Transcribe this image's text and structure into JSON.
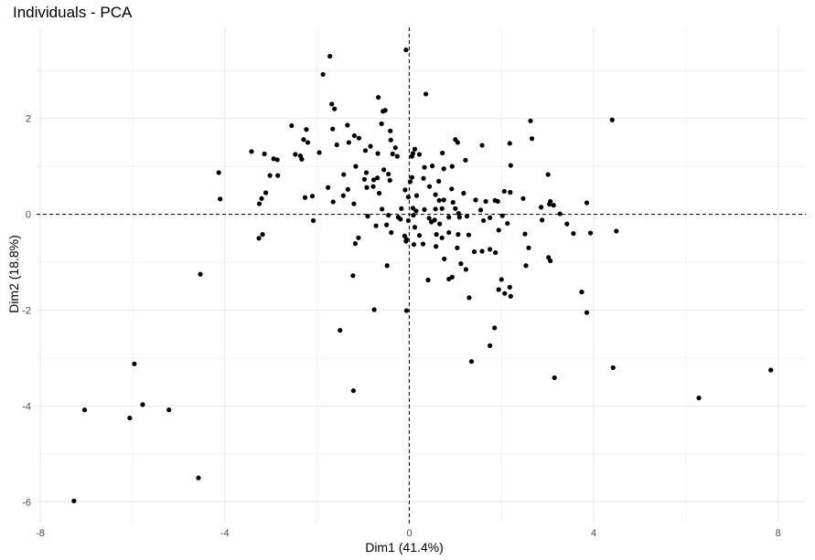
{
  "chart_data": {
    "type": "scatter",
    "title": "Individuals - PCA",
    "xlabel": "Dim1 (41.4%)",
    "ylabel": "Dim2 (18.8%)",
    "xlim": [
      -8.08,
      8.6
    ],
    "ylim": [
      -6.45,
      3.9
    ],
    "xticks": [
      -8,
      -4,
      0,
      4,
      8
    ],
    "yticks": [
      -6,
      -4,
      -2,
      0,
      2
    ],
    "xtick_labels": [
      "-8",
      "-4",
      "0",
      "4",
      "8"
    ],
    "ytick_labels": [
      "-6",
      "-4",
      "-2",
      "0",
      "2"
    ],
    "grid": true,
    "reference_lines": {
      "x": 0,
      "y": 0,
      "style": "dashed"
    },
    "point_color": "#000000",
    "points": [
      [
        -0.07,
        3.43
      ],
      [
        -1.72,
        3.3
      ],
      [
        -1.87,
        2.92
      ],
      [
        0.36,
        2.51
      ],
      [
        -0.52,
        2.17
      ],
      [
        -0.57,
        2.15
      ],
      [
        -1.68,
        2.3
      ],
      [
        -0.67,
        2.44
      ],
      [
        -1.62,
        2.2
      ],
      [
        2.63,
        1.95
      ],
      [
        4.4,
        1.97
      ],
      [
        -2.55,
        1.85
      ],
      [
        -1.34,
        1.86
      ],
      [
        -1.66,
        1.78
      ],
      [
        -0.6,
        1.89
      ],
      [
        -2.23,
        1.77
      ],
      [
        -2.29,
        1.56
      ],
      [
        -1.19,
        1.64
      ],
      [
        -1.31,
        1.5
      ],
      [
        -1.09,
        1.59
      ],
      [
        -0.41,
        1.74
      ],
      [
        2.66,
        1.58
      ],
      [
        -1.57,
        1.45
      ],
      [
        -0.4,
        1.55
      ],
      [
        -1.95,
        1.29
      ],
      [
        -2.2,
        1.5
      ],
      [
        -3.42,
        1.31
      ],
      [
        -3.14,
        1.26
      ],
      [
        2.18,
        1.48
      ],
      [
        -0.84,
        1.42
      ],
      [
        -0.95,
        1.33
      ],
      [
        -2.47,
        1.25
      ],
      [
        -2.33,
        1.15
      ],
      [
        1.0,
        1.56
      ],
      [
        1.05,
        1.5
      ],
      [
        1.58,
        1.44
      ],
      [
        -2.86,
        1.14
      ],
      [
        -2.94,
        1.16
      ],
      [
        -0.3,
        1.39
      ],
      [
        -0.36,
        1.26
      ],
      [
        -0.68,
        1.27
      ],
      [
        0.22,
        1.25
      ],
      [
        0.72,
        1.28
      ],
      [
        1.22,
        1.13
      ],
      [
        -2.36,
        1.22
      ],
      [
        -0.26,
        1.21
      ],
      [
        0.12,
        1.36
      ],
      [
        0.08,
        1.27
      ],
      [
        0.06,
        1.21
      ],
      [
        0.5,
        1.01
      ],
      [
        -1.16,
        1.0
      ],
      [
        -0.55,
        0.93
      ],
      [
        -0.93,
        0.87
      ],
      [
        -0.45,
        0.84
      ],
      [
        -0.69,
        0.76
      ],
      [
        2.2,
        1.02
      ],
      [
        0.93,
        1.0
      ],
      [
        0.33,
        0.98
      ],
      [
        0.75,
        0.95
      ],
      [
        -4.13,
        0.87
      ],
      [
        -1.42,
        0.83
      ],
      [
        -3.02,
        0.81
      ],
      [
        -2.85,
        0.81
      ],
      [
        -0.97,
        0.73
      ],
      [
        -0.77,
        0.72
      ],
      [
        -0.42,
        0.71
      ],
      [
        0.06,
        0.77
      ],
      [
        0.02,
        0.68
      ],
      [
        0.31,
        0.75
      ],
      [
        0.64,
        0.69
      ],
      [
        3.01,
        0.83
      ],
      [
        -1.76,
        0.56
      ],
      [
        -0.92,
        0.56
      ],
      [
        -0.78,
        0.58
      ],
      [
        -0.09,
        0.51
      ],
      [
        0.44,
        0.58
      ],
      [
        0.92,
        0.53
      ],
      [
        1.18,
        0.44
      ],
      [
        1.44,
        0.3
      ],
      [
        2.06,
        0.48
      ],
      [
        2.19,
        0.46
      ],
      [
        -3.11,
        0.45
      ],
      [
        -3.2,
        0.33
      ],
      [
        -2.26,
        0.35
      ],
      [
        -2.1,
        0.38
      ],
      [
        -1.33,
        0.52
      ],
      [
        -1.43,
        0.39
      ],
      [
        -0.65,
        0.44
      ],
      [
        -0.02,
        0.36
      ],
      [
        0.16,
        0.39
      ],
      [
        0.57,
        0.41
      ],
      [
        0.65,
        0.29
      ],
      [
        0.75,
        0.3
      ],
      [
        0.95,
        0.25
      ],
      [
        1.66,
        0.27
      ],
      [
        1.86,
        0.29
      ],
      [
        2.47,
        0.33
      ],
      [
        3.06,
        0.27
      ],
      [
        3.04,
        0.21
      ],
      [
        3.13,
        0.19
      ],
      [
        -4.1,
        0.32
      ],
      [
        -3.25,
        0.22
      ],
      [
        -1.65,
        0.26
      ],
      [
        -1.2,
        0.22
      ],
      [
        -0.59,
        0.11
      ],
      [
        -0.17,
        0.12
      ],
      [
        0.08,
        0.13
      ],
      [
        0.15,
        0.07
      ],
      [
        0.33,
        0.1
      ],
      [
        0.57,
        0.11
      ],
      [
        0.71,
        0.12
      ],
      [
        1.0,
        0.12
      ],
      [
        1.07,
        0.02
      ],
      [
        1.55,
        0.09
      ],
      [
        1.92,
        0.27
      ],
      [
        2.86,
        0.15
      ],
      [
        3.85,
        0.24
      ],
      [
        3.27,
        0.01
      ],
      [
        -2.08,
        -0.13
      ],
      [
        -0.9,
        -0.04
      ],
      [
        -0.45,
        -0.02
      ],
      [
        -0.24,
        -0.06
      ],
      [
        -0.49,
        -0.22
      ],
      [
        -0.19,
        -0.1
      ],
      [
        -0.02,
        -0.13
      ],
      [
        0.09,
        -0.02
      ],
      [
        0.43,
        -0.08
      ],
      [
        0.48,
        -0.16
      ],
      [
        0.55,
        -0.12
      ],
      [
        0.66,
        -0.2
      ],
      [
        0.86,
        -0.06
      ],
      [
        1.09,
        -0.06
      ],
      [
        1.25,
        -0.04
      ],
      [
        1.61,
        -0.13
      ],
      [
        1.75,
        -0.07
      ],
      [
        2.02,
        -0.03
      ],
      [
        2.13,
        -0.19
      ],
      [
        2.88,
        -0.12
      ],
      [
        3.42,
        -0.2
      ],
      [
        -3.18,
        -0.42
      ],
      [
        -3.26,
        -0.5
      ],
      [
        -1.1,
        -0.49
      ],
      [
        -0.72,
        -0.24
      ],
      [
        -0.39,
        -0.38
      ],
      [
        -0.1,
        -0.45
      ],
      [
        -0.06,
        -0.52
      ],
      [
        0.12,
        -0.27
      ],
      [
        0.22,
        -0.44
      ],
      [
        0.59,
        -0.42
      ],
      [
        0.71,
        -0.49
      ],
      [
        0.86,
        -0.38
      ],
      [
        1.06,
        -0.42
      ],
      [
        1.29,
        -0.43
      ],
      [
        1.94,
        -0.33
      ],
      [
        2.51,
        -0.41
      ],
      [
        3.56,
        -0.4
      ],
      [
        3.93,
        -0.39
      ],
      [
        4.49,
        -0.35
      ],
      [
        -1.17,
        -0.61
      ],
      [
        -0.07,
        -0.56
      ],
      [
        0.1,
        -0.63
      ],
      [
        0.3,
        -0.62
      ],
      [
        0.58,
        -0.67
      ],
      [
        1.04,
        -0.7
      ],
      [
        1.41,
        -0.78
      ],
      [
        1.58,
        -0.77
      ],
      [
        1.75,
        -0.73
      ],
      [
        1.87,
        -0.8
      ],
      [
        2.59,
        -0.7
      ],
      [
        3.02,
        -0.9
      ],
      [
        3.06,
        -0.97
      ],
      [
        -0.48,
        -1.07
      ],
      [
        0.76,
        -0.93
      ],
      [
        1.12,
        -1.03
      ],
      [
        1.23,
        -1.15
      ],
      [
        2.53,
        -1.07
      ],
      [
        -4.53,
        -1.25
      ],
      [
        -1.22,
        -1.28
      ],
      [
        0.41,
        -1.37
      ],
      [
        0.86,
        -1.35
      ],
      [
        0.93,
        -1.31
      ],
      [
        2.0,
        -1.36
      ],
      [
        2.18,
        -1.52
      ],
      [
        3.74,
        -1.62
      ],
      [
        1.3,
        -1.74
      ],
      [
        1.94,
        -1.57
      ],
      [
        2.07,
        -1.65
      ],
      [
        2.2,
        -1.71
      ],
      [
        -0.76,
        -1.99
      ],
      [
        -0.06,
        -2.01
      ],
      [
        3.85,
        -2.05
      ],
      [
        1.85,
        -2.37
      ],
      [
        -1.5,
        -2.42
      ],
      [
        1.75,
        -2.74
      ],
      [
        -5.96,
        -3.12
      ],
      [
        1.35,
        -3.07
      ],
      [
        4.42,
        -3.2
      ],
      [
        3.15,
        -3.41
      ],
      [
        7.84,
        -3.25
      ],
      [
        -1.21,
        -3.68
      ],
      [
        -5.78,
        -3.97
      ],
      [
        -7.04,
        -4.08
      ],
      [
        -5.21,
        -4.08
      ],
      [
        -6.06,
        -4.25
      ],
      [
        6.28,
        -3.83
      ],
      [
        -4.57,
        -5.5
      ],
      [
        -7.27,
        -5.98
      ]
    ]
  }
}
